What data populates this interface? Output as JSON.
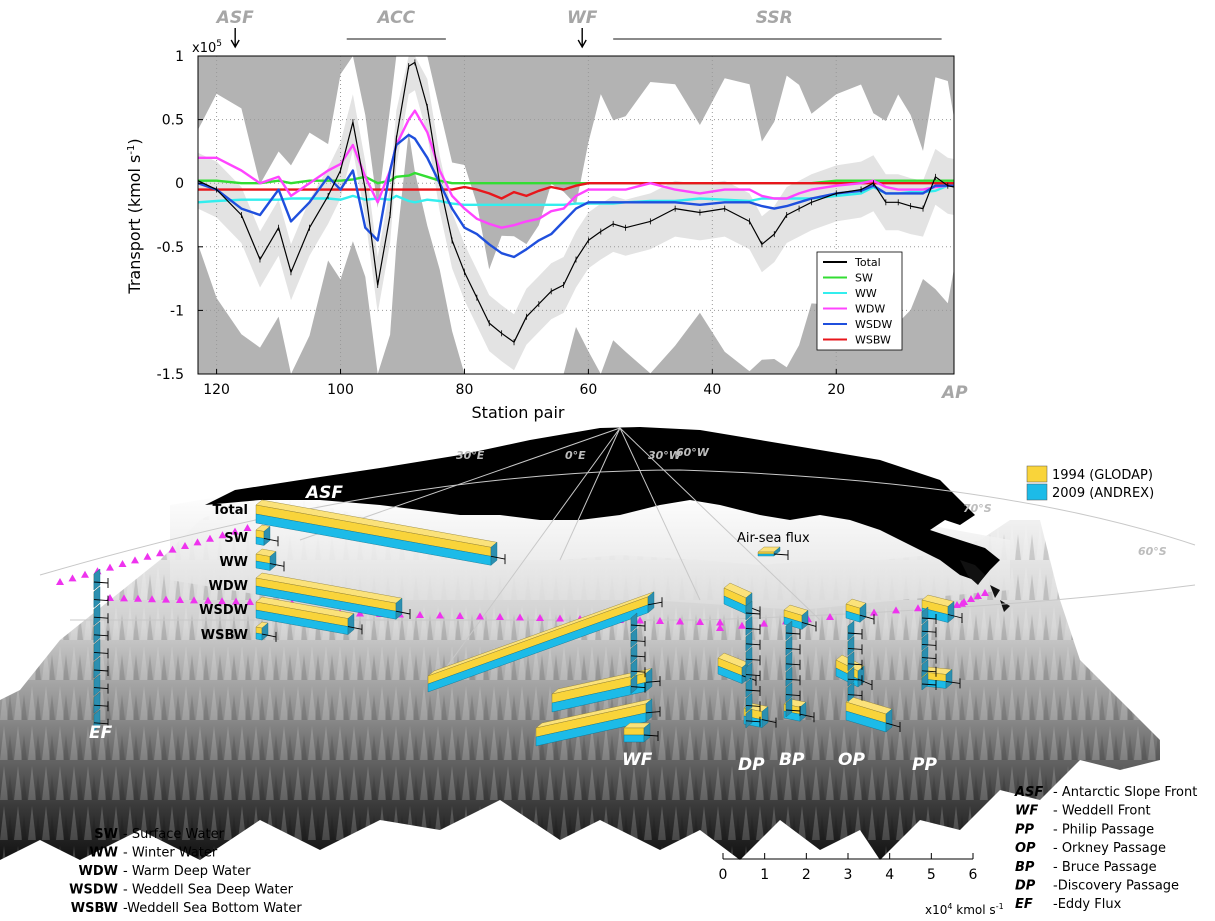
{
  "chart_data": {
    "type": "line",
    "xlabel": "Station pair",
    "ylabel": "Transport (kmol s-1)",
    "y_exponent": "x10",
    "y_exponent_power": "5",
    "xlim": [
      123,
      1
    ],
    "ylim": [
      -1.5,
      1
    ],
    "x_reversed": true,
    "xticks": [
      "120",
      "100",
      "80",
      "60",
      "40",
      "20"
    ],
    "yticks": [
      "1",
      "0.5",
      "0",
      "-0.5",
      "-1",
      "-1.5"
    ],
    "grid": "dotted",
    "legend_position": "lower-right",
    "top_labels": [
      {
        "text": "ASF",
        "station": 117,
        "marker": "arrow"
      },
      {
        "text": "ACC",
        "station": 91,
        "marker": "bar",
        "from": 99,
        "to": 83
      },
      {
        "text": "WF",
        "station": 61,
        "marker": "arrow"
      },
      {
        "text": "SSR",
        "station": 30,
        "marker": "bar",
        "from": 56,
        "to": 3
      }
    ],
    "corner_label": "AP",
    "x": [
      123,
      120,
      116,
      113,
      110,
      108,
      105,
      102,
      100,
      98,
      96,
      94,
      92,
      91,
      89,
      88,
      86,
      84,
      82,
      80,
      78,
      76,
      74,
      72,
      70,
      68,
      66,
      64,
      62,
      60,
      58,
      56,
      54,
      50,
      46,
      42,
      38,
      34,
      32,
      30,
      28,
      26,
      24,
      20,
      16,
      14,
      12,
      10,
      8,
      6,
      4,
      2,
      1
    ],
    "series": [
      {
        "name": "Total",
        "color": "#000000",
        "values": [
          0.02,
          -0.05,
          -0.25,
          -0.6,
          -0.35,
          -0.7,
          -0.35,
          -0.1,
          0.1,
          0.48,
          -0.05,
          -0.8,
          -0.25,
          0.35,
          0.92,
          0.95,
          0.6,
          0.0,
          -0.45,
          -0.7,
          -0.9,
          -1.1,
          -1.18,
          -1.25,
          -1.05,
          -0.95,
          -0.85,
          -0.8,
          -0.6,
          -0.45,
          -0.38,
          -0.32,
          -0.35,
          -0.3,
          -0.2,
          -0.23,
          -0.2,
          -0.3,
          -0.48,
          -0.4,
          -0.25,
          -0.2,
          -0.15,
          -0.08,
          -0.05,
          0.0,
          -0.15,
          -0.15,
          -0.18,
          -0.2,
          0.05,
          -0.02,
          -0.03
        ]
      },
      {
        "name": "SW",
        "color": "#33dd33",
        "values": [
          0.02,
          0.02,
          0.0,
          0.0,
          0.02,
          0.0,
          0.02,
          0.02,
          0.02,
          0.03,
          0.05,
          0.0,
          0.02,
          0.05,
          0.06,
          0.08,
          0.05,
          0.02,
          0.0,
          0.0,
          0.0,
          0.0,
          0.0,
          0.0,
          0.0,
          0.0,
          0.0,
          0.0,
          0.0,
          0.0,
          0.0,
          0.0,
          0.0,
          0.0,
          0.0,
          0.0,
          0.0,
          0.0,
          0.0,
          0.0,
          0.0,
          0.0,
          0.0,
          0.02,
          0.02,
          0.02,
          0.02,
          0.02,
          0.02,
          0.02,
          0.02,
          0.02,
          0.02
        ]
      },
      {
        "name": "WW",
        "color": "#33eeee",
        "values": [
          -0.15,
          -0.14,
          -0.13,
          -0.13,
          -0.13,
          -0.12,
          -0.12,
          -0.12,
          -0.13,
          -0.1,
          -0.13,
          -0.12,
          -0.13,
          -0.1,
          -0.14,
          -0.15,
          -0.13,
          -0.14,
          -0.16,
          -0.17,
          -0.17,
          -0.17,
          -0.17,
          -0.17,
          -0.17,
          -0.17,
          -0.17,
          -0.17,
          -0.16,
          -0.16,
          -0.16,
          -0.16,
          -0.15,
          -0.14,
          -0.14,
          -0.12,
          -0.13,
          -0.14,
          -0.12,
          -0.12,
          -0.12,
          -0.12,
          -0.12,
          -0.1,
          -0.08,
          -0.03,
          -0.08,
          -0.08,
          -0.07,
          -0.07,
          -0.06,
          -0.02,
          -0.02
        ]
      },
      {
        "name": "WDW",
        "color": "#ff44ff",
        "values": [
          0.2,
          0.2,
          0.1,
          0.0,
          0.05,
          -0.1,
          0.0,
          0.1,
          0.15,
          0.3,
          0.05,
          -0.15,
          0.1,
          0.3,
          0.5,
          0.57,
          0.4,
          0.1,
          -0.1,
          -0.2,
          -0.28,
          -0.32,
          -0.35,
          -0.33,
          -0.3,
          -0.28,
          -0.22,
          -0.2,
          -0.1,
          -0.05,
          -0.05,
          -0.05,
          -0.05,
          0.0,
          -0.05,
          -0.08,
          -0.05,
          -0.05,
          -0.1,
          -0.12,
          -0.12,
          -0.08,
          -0.05,
          -0.02,
          0.0,
          0.02,
          -0.03,
          -0.05,
          -0.05,
          -0.05,
          -0.03,
          -0.02,
          -0.02
        ]
      },
      {
        "name": "WSDW",
        "color": "#1f4fdd",
        "values": [
          0.0,
          -0.05,
          -0.2,
          -0.25,
          -0.05,
          -0.3,
          -0.15,
          0.05,
          -0.05,
          0.1,
          -0.35,
          -0.45,
          0.1,
          0.3,
          0.38,
          0.35,
          0.2,
          0.0,
          -0.2,
          -0.35,
          -0.4,
          -0.48,
          -0.55,
          -0.58,
          -0.52,
          -0.45,
          -0.4,
          -0.3,
          -0.2,
          -0.15,
          -0.15,
          -0.15,
          -0.15,
          -0.15,
          -0.15,
          -0.17,
          -0.15,
          -0.15,
          -0.18,
          -0.2,
          -0.18,
          -0.15,
          -0.12,
          -0.08,
          -0.06,
          -0.02,
          -0.08,
          -0.08,
          -0.08,
          -0.08,
          -0.02,
          -0.02,
          -0.02
        ]
      },
      {
        "name": "WSBW",
        "color": "#e8161b",
        "values": [
          -0.05,
          -0.05,
          -0.05,
          -0.05,
          -0.05,
          -0.05,
          -0.05,
          -0.05,
          -0.05,
          -0.05,
          -0.05,
          -0.05,
          -0.05,
          -0.05,
          -0.05,
          -0.05,
          -0.05,
          -0.05,
          -0.05,
          -0.03,
          -0.05,
          -0.08,
          -0.12,
          -0.07,
          -0.1,
          -0.06,
          -0.03,
          -0.05,
          -0.02,
          0.0,
          0.0,
          0.0,
          0.0,
          0.0,
          0.0,
          0.0,
          0.0,
          0.0,
          0.0,
          0.0,
          0.0,
          0.0,
          0.0,
          0.0,
          0.0,
          0.0,
          0.0,
          0.0,
          0.0,
          0.0,
          0.0,
          0.0,
          0.0
        ]
      }
    ]
  },
  "map": {
    "meridians": [
      "30°E",
      "0°E",
      "30°W",
      "60°W"
    ],
    "parallels": [
      "70°S",
      "60°S"
    ],
    "bar_legend": [
      {
        "label": "1994 (GLODAP)",
        "color": "#f9d43a"
      },
      {
        "label": "2009 (ANDREX)",
        "color": "#1cbbe8"
      }
    ],
    "flux_label": "Air-sea flux",
    "asf_label": "ASF",
    "row_labels": [
      "Total",
      "SW",
      "WW",
      "WDW",
      "WSDW",
      "WSBW"
    ],
    "site_labels": [
      "EF",
      "WF",
      "DP",
      "BP",
      "OP",
      "PP"
    ],
    "scale_ticks": [
      "0",
      "1",
      "2",
      "3",
      "4",
      "5",
      "6"
    ],
    "scale_unit": "x10",
    "scale_unit_power": "4",
    "scale_unit_rest": "kmol s",
    "scale_unit_sup": "-1",
    "water_masses": [
      {
        "abbr": "SW",
        "desc": "- Surface Water"
      },
      {
        "abbr": "WW",
        "desc": "- Winter Water"
      },
      {
        "abbr": "WDW",
        "desc": "- Warm Deep Water"
      },
      {
        "abbr": "WSDW",
        "desc": "- Weddell Sea Deep Water"
      },
      {
        "abbr": "WSBW",
        "desc": "-Weddell Sea Bottom Water"
      }
    ],
    "features": [
      {
        "abbr": "ASF",
        "desc": "- Antarctic Slope Front"
      },
      {
        "abbr": "WF",
        "desc": "- Weddell Front"
      },
      {
        "abbr": "PP",
        "desc": "- Philip Passage"
      },
      {
        "abbr": "OP",
        "desc": "- Orkney Passage"
      },
      {
        "abbr": "BP",
        "desc": "- Bruce Passage"
      },
      {
        "abbr": "DP",
        "desc": "-Discovery Passage"
      },
      {
        "abbr": "EF",
        "desc": "-Eddy Flux"
      }
    ]
  }
}
